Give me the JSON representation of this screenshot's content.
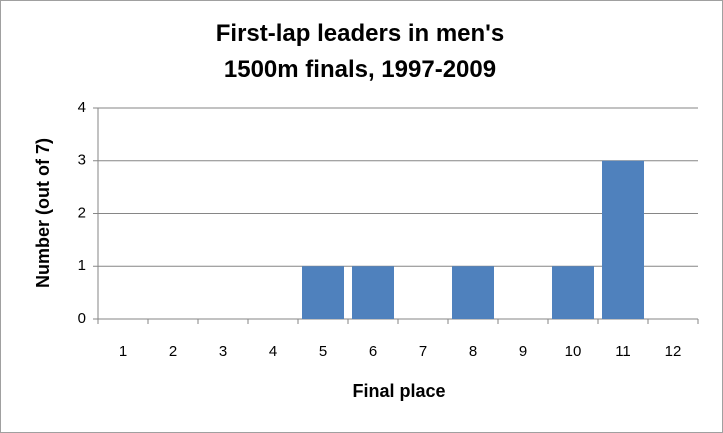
{
  "chart_data": {
    "type": "bar",
    "title": "First-lap leaders in men's 1500m finals, 1997-2009",
    "x_label": "Final place",
    "y_label": "Number (out of 7)",
    "categories": [
      "1",
      "2",
      "3",
      "4",
      "5",
      "6",
      "7",
      "8",
      "9",
      "10",
      "11",
      "12"
    ],
    "values": [
      0,
      0,
      0,
      0,
      1,
      1,
      0,
      1,
      0,
      1,
      3,
      0
    ],
    "color": "#4f81bd",
    "ylim": [
      0,
      4
    ],
    "yticks": [
      0,
      1,
      2,
      3,
      4
    ],
    "grid": true
  }
}
